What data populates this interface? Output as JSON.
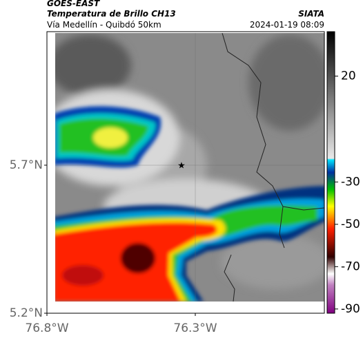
{
  "header": {
    "source": "GOES-EAST",
    "title": "Temperatura de Brillo CH13",
    "subtitle": "Vía Medellín - Quibdó 50km",
    "brand": "SIATA",
    "datetime": "2024-01-19 08:09"
  },
  "map": {
    "xlim": [
      -76.8,
      -75.865
    ],
    "ylim": [
      5.2,
      6.151
    ],
    "xticks": [
      {
        "value": -76.8,
        "label": "76.8°W"
      },
      {
        "value": -76.3,
        "label": "76.3°W"
      }
    ],
    "yticks": [
      {
        "value": 5.2,
        "label": "5.2°N"
      },
      {
        "value": 5.7,
        "label": "5.7°N"
      }
    ]
  },
  "colorbar": {
    "clim": [
      -92,
      41
    ],
    "ticks": [
      20,
      -30,
      -50,
      -70,
      -90
    ]
  }
}
